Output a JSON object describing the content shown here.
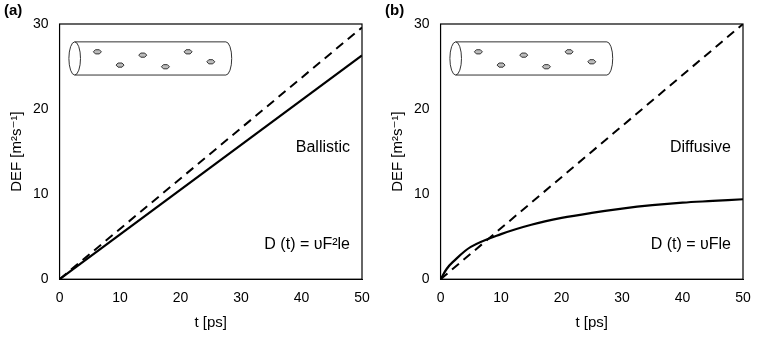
{
  "chart_data": [
    {
      "type": "line",
      "label": "(a)",
      "annotations": [
        "Ballistic",
        "D (t) = υF²le"
      ],
      "x_label": "t [ps]",
      "y_label": "DEF [m²s⁻¹]",
      "xlim": [
        0,
        50
      ],
      "xticks": [
        0,
        10,
        20,
        30,
        40,
        50
      ],
      "ylim": [
        0,
        30
      ],
      "yticks": [
        0,
        10,
        20,
        30
      ],
      "grid": false,
      "series": [
        {
          "color": "#000000",
          "line_style": "dashed",
          "x": [
            0,
            50
          ],
          "values": [
            0,
            29.6
          ]
        },
        {
          "color": "#000000",
          "line_style": "solid",
          "x": [
            0,
            50
          ],
          "values": [
            0,
            26.3
          ]
        }
      ]
    },
    {
      "type": "line",
      "label": "(b)",
      "annotations": [
        "Diffusive",
        "D (t) = υFle"
      ],
      "x_label": "t [ps]",
      "y_label": "DEF [m²s⁻¹]",
      "xlim": [
        0,
        50
      ],
      "xticks": [
        0,
        10,
        20,
        30,
        40,
        50
      ],
      "ylim": [
        0,
        30
      ],
      "yticks": [
        0,
        10,
        20,
        30
      ],
      "grid": false,
      "series": [
        {
          "color": "#000000",
          "line_style": "dashed",
          "x": [
            0,
            50
          ],
          "values": [
            0,
            30
          ]
        },
        {
          "color": "#000000",
          "line_style": "solid",
          "x": [
            0,
            1,
            2,
            5,
            10,
            15,
            20,
            25,
            30,
            35,
            40,
            45,
            50
          ],
          "values": [
            0,
            1.2,
            2.0,
            3.8,
            5.3,
            6.4,
            7.2,
            7.8,
            8.3,
            8.7,
            9.0,
            9.2,
            9.4
          ]
        }
      ]
    }
  ]
}
